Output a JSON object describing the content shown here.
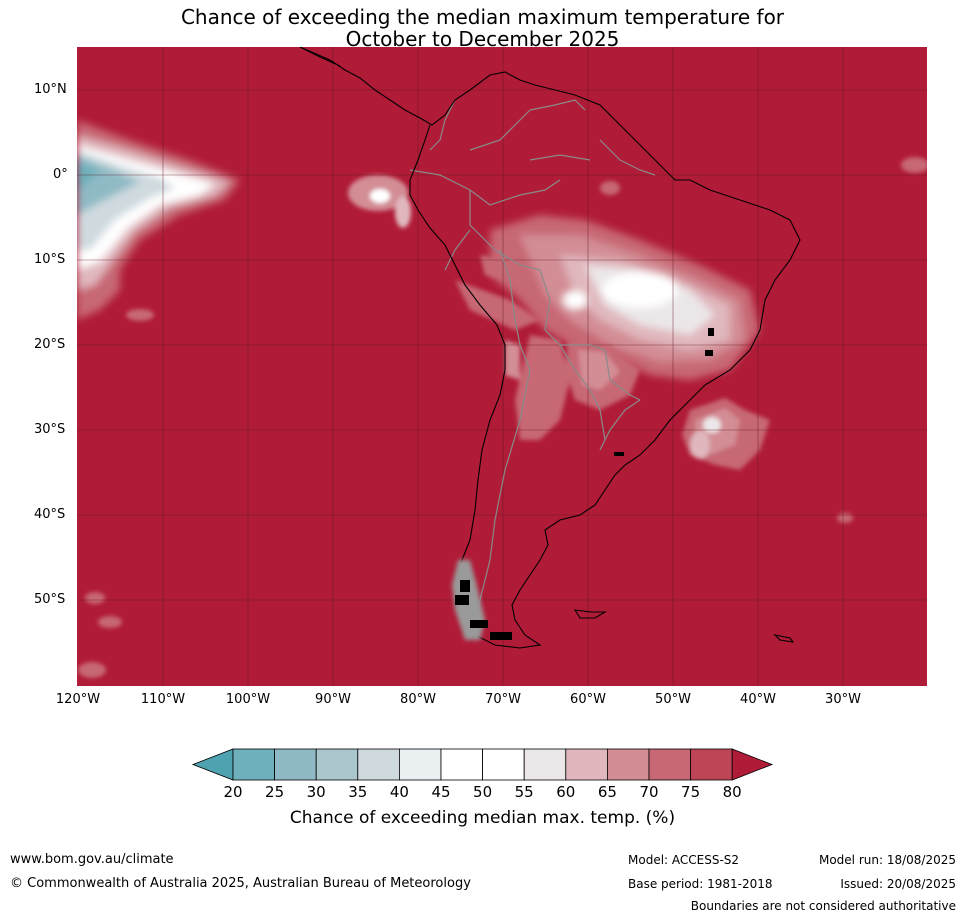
{
  "title": {
    "line1": "Chance of exceeding the median maximum temperature for",
    "line2": "October to December 2025"
  },
  "map": {
    "lat_labels": [
      "10°N",
      "0°",
      "10°S",
      "20°S",
      "30°S",
      "40°S",
      "50°S"
    ],
    "lon_labels": [
      "120°W",
      "110°W",
      "100°W",
      "90°W",
      "80°W",
      "70°W",
      "60°W",
      "50°W",
      "40°W",
      "30°W"
    ],
    "background_color": "#b01b37"
  },
  "colorbar": {
    "ticks": [
      "20",
      "25",
      "30",
      "35",
      "40",
      "45",
      "50",
      "55",
      "60",
      "65",
      "70",
      "75",
      "80"
    ],
    "colors": [
      "#4fa3b0",
      "#6eb0bb",
      "#8fbac5",
      "#abc6cd",
      "#cfdadf",
      "#eaf0f2",
      "#ffffff",
      "#ffffff",
      "#ebe7e8",
      "#e0b7bd",
      "#d38d95",
      "#c76874",
      "#be4555",
      "#b01b37"
    ],
    "label": "Chance of exceeding median max. temp. (%)"
  },
  "footer": {
    "website": "www.bom.gov.au/climate",
    "copyright": "© Commonwealth of Australia 2025, Australian Bureau of Meteorology",
    "model": "Model: ACCESS-S2",
    "base_period": "Base period: 1981-2018",
    "model_run": "Model run: 18/08/2025",
    "issued": "Issued: 20/08/2025",
    "disclaimer": "Boundaries are not considered authoritative"
  }
}
